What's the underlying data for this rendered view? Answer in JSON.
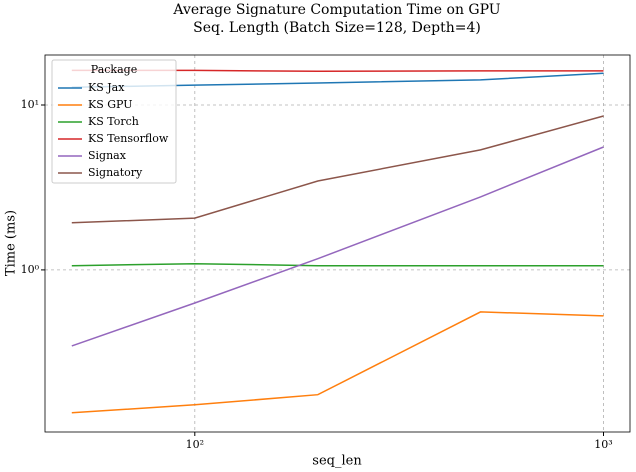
{
  "chart_data": {
    "type": "line",
    "title": "Average Signature Computation Time on GPU",
    "subtitle": "Seq. Length (Batch Size=128, Depth=4)",
    "x_label": "seq_len",
    "y_label": "Time (ms)",
    "x": [
      50,
      100,
      200,
      500,
      1000
    ],
    "xscale": "log",
    "yscale": "log",
    "xlim": [
      43,
      1161
    ],
    "ylim": [
      0.104,
      20.1
    ],
    "xticks": [
      {
        "value": 100,
        "label": "10²"
      },
      {
        "value": 1000,
        "label": "10³"
      }
    ],
    "yticks": [
      {
        "value": 1,
        "label": "10⁰"
      },
      {
        "value": 10,
        "label": "10¹"
      }
    ],
    "grid": true,
    "legend_title": "Package",
    "legend_position": "upper-left",
    "series": [
      {
        "name": "KS Jax",
        "color": "#1f77b4",
        "values": [
          12.8,
          13.2,
          13.6,
          14.2,
          15.6
        ]
      },
      {
        "name": "KS GPU",
        "color": "#ff7f0e",
        "values": [
          0.136,
          0.152,
          0.175,
          0.556,
          0.526
        ]
      },
      {
        "name": "KS Torch",
        "color": "#2ca02c",
        "values": [
          1.06,
          1.09,
          1.06,
          1.06,
          1.06
        ]
      },
      {
        "name": "KS Tensorflow",
        "color": "#d62728",
        "values": [
          16.2,
          16.2,
          16.0,
          16.1,
          16.1
        ]
      },
      {
        "name": "Signax",
        "color": "#9467bd",
        "values": [
          0.346,
          0.63,
          1.17,
          2.77,
          5.56
        ]
      },
      {
        "name": "Signatory",
        "color": "#8c564b",
        "values": [
          1.93,
          2.06,
          3.46,
          5.34,
          8.58
        ]
      }
    ]
  }
}
